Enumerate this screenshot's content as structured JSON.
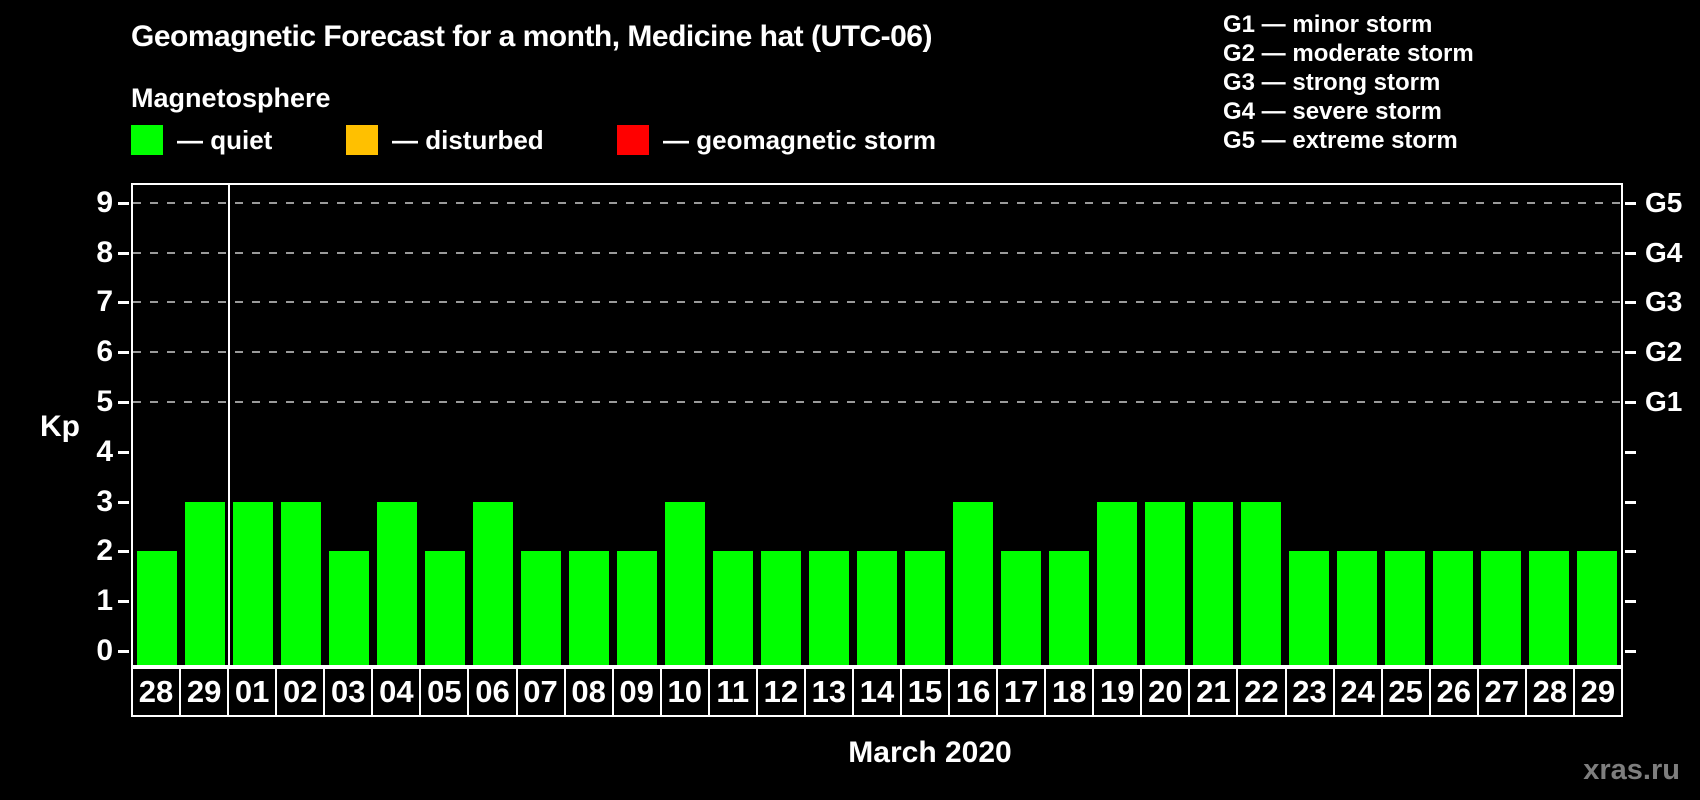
{
  "header": {
    "title": "Geomagnetic Forecast for a month, Medicine hat (UTC-06)",
    "subtitle": "Magnetosphere"
  },
  "legend": {
    "items": [
      {
        "id": "quiet",
        "label": "— quiet",
        "color": "#00ff00"
      },
      {
        "id": "disturbed",
        "label": "— disturbed",
        "color": "#ffc000"
      },
      {
        "id": "storm",
        "label": "— geomagnetic storm",
        "color": "#ff0000"
      }
    ]
  },
  "g_scale_legend": {
    "items": [
      "G1 — minor storm",
      "G2 — moderate storm",
      "G3 — strong storm",
      "G4 — severe storm",
      "G5 — extreme storm"
    ]
  },
  "chart_data": {
    "type": "bar",
    "title": "Geomagnetic Forecast for a month, Medicine hat (UTC-06)",
    "categories": [
      "28",
      "29",
      "01",
      "02",
      "03",
      "04",
      "05",
      "06",
      "07",
      "08",
      "09",
      "10",
      "11",
      "12",
      "13",
      "14",
      "15",
      "16",
      "17",
      "18",
      "19",
      "20",
      "21",
      "22",
      "23",
      "24",
      "25",
      "26",
      "27",
      "28",
      "29"
    ],
    "values": [
      2,
      3,
      3,
      3,
      2,
      3,
      2,
      3,
      2,
      2,
      2,
      3,
      2,
      2,
      2,
      2,
      2,
      3,
      2,
      2,
      3,
      3,
      3,
      3,
      2,
      2,
      2,
      2,
      2,
      2,
      2
    ],
    "ylabel": "Kp",
    "xlabel": "March 2020",
    "ylim": [
      0,
      9
    ],
    "yticks": [
      0,
      1,
      2,
      3,
      4,
      5,
      6,
      7,
      8,
      9
    ],
    "right_axis_labels": [
      {
        "kp": 5,
        "label": "G1"
      },
      {
        "kp": 6,
        "label": "G2"
      },
      {
        "kp": 7,
        "label": "G3"
      },
      {
        "kp": 8,
        "label": "G4"
      },
      {
        "kp": 9,
        "label": "G5"
      }
    ],
    "gridlines_at_kp": [
      5,
      6,
      7,
      8,
      9
    ],
    "grid_style": "dashed gray horizontal lines at G-storm thresholds",
    "bar_color": "#00ff00",
    "background_color": "#000000",
    "axis_color": "#ffffff",
    "separator_after_category_index": 1,
    "legend_position": "top-left"
  },
  "footer": {
    "xlabel": "March 2020",
    "watermark": "xras.ru"
  }
}
